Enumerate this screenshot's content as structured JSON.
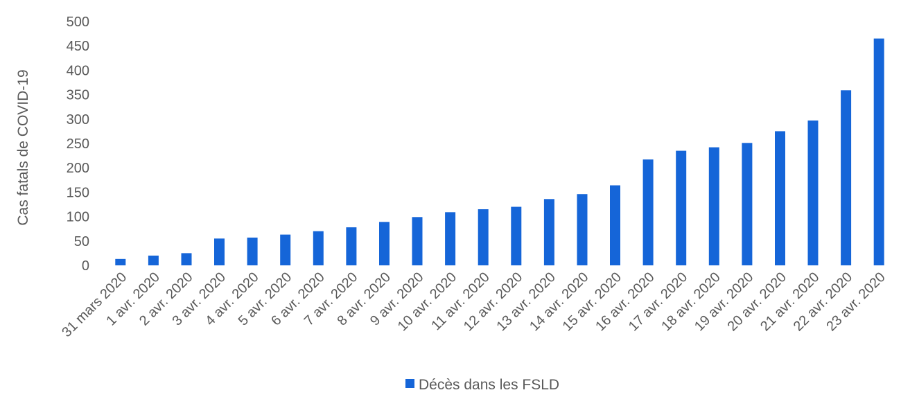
{
  "chart_data": {
    "type": "bar",
    "title": "",
    "xlabel": "",
    "ylabel": "Cas fatals de COVID-19",
    "ylim": [
      0,
      500
    ],
    "yticks": [
      0,
      50,
      100,
      150,
      200,
      250,
      300,
      350,
      400,
      450,
      500
    ],
    "grid": false,
    "legend_position": "bottom",
    "categories": [
      "31 mars 2020",
      "1 avr. 2020",
      "2 avr. 2020",
      "3 avr. 2020",
      "4 avr. 2020",
      "5 avr. 2020",
      "6 avr. 2020",
      "7 avr. 2020",
      "8 avr. 2020",
      "9 avr. 2020",
      "10 avr. 2020",
      "11 avr. 2020",
      "12 avr. 2020",
      "13 avr. 2020",
      "14 avr. 2020",
      "15 avr. 2020",
      "16 avr. 2020",
      "17 avr. 2020",
      "18 avr. 2020",
      "19 avr. 2020",
      "20 avr. 2020",
      "21 avr. 2020",
      "22 avr. 2020",
      "23 avr. 2020"
    ],
    "series": [
      {
        "name": "Décès dans les FSLD",
        "color": "#1565D8",
        "values": [
          13,
          20,
          25,
          55,
          57,
          63,
          70,
          78,
          89,
          99,
          109,
          115,
          120,
          136,
          146,
          164,
          217,
          235,
          242,
          251,
          275,
          297,
          359,
          465
        ]
      }
    ]
  }
}
